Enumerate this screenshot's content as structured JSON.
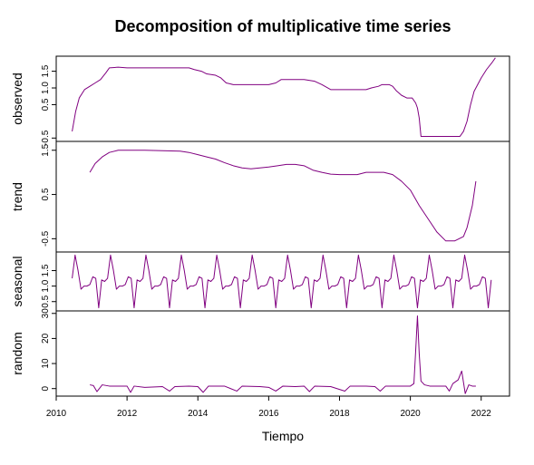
{
  "chart_data": {
    "type": "line",
    "title": "Decomposition of multiplicative time series",
    "xlabel": "Tiempo",
    "line_color": "#800080",
    "xlim": [
      2010,
      2022.8
    ],
    "xticks": [
      2010,
      2012,
      2014,
      2016,
      2018,
      2020,
      2022
    ],
    "panels": [
      {
        "name": "observed",
        "ylabel": "observed",
        "ylim": [
          -0.6,
          1.95
        ],
        "yticks": [
          -0.5,
          0.5,
          1.0,
          1.5
        ],
        "yticklabels": [
          "-0.5",
          "0.5",
          "1.0",
          "1.5"
        ],
        "points": [
          [
            2010.45,
            -0.3
          ],
          [
            2010.55,
            0.3
          ],
          [
            2010.65,
            0.7
          ],
          [
            2010.8,
            0.95
          ],
          [
            2010.95,
            1.05
          ],
          [
            2011.1,
            1.15
          ],
          [
            2011.25,
            1.25
          ],
          [
            2011.4,
            1.45
          ],
          [
            2011.5,
            1.6
          ],
          [
            2011.75,
            1.62
          ],
          [
            2012.0,
            1.6
          ],
          [
            2013.0,
            1.6
          ],
          [
            2013.75,
            1.6
          ],
          [
            2013.9,
            1.55
          ],
          [
            2014.1,
            1.5
          ],
          [
            2014.25,
            1.42
          ],
          [
            2014.5,
            1.38
          ],
          [
            2014.65,
            1.3
          ],
          [
            2014.8,
            1.15
          ],
          [
            2015.0,
            1.1
          ],
          [
            2015.5,
            1.1
          ],
          [
            2016.0,
            1.1
          ],
          [
            2016.2,
            1.15
          ],
          [
            2016.35,
            1.25
          ],
          [
            2016.6,
            1.25
          ],
          [
            2017.0,
            1.25
          ],
          [
            2017.3,
            1.2
          ],
          [
            2017.5,
            1.1
          ],
          [
            2017.75,
            0.95
          ],
          [
            2018.0,
            0.95
          ],
          [
            2018.5,
            0.95
          ],
          [
            2018.75,
            0.95
          ],
          [
            2018.9,
            1.0
          ],
          [
            2019.1,
            1.05
          ],
          [
            2019.2,
            1.1
          ],
          [
            2019.4,
            1.1
          ],
          [
            2019.5,
            1.05
          ],
          [
            2019.6,
            0.92
          ],
          [
            2019.75,
            0.78
          ],
          [
            2019.9,
            0.7
          ],
          [
            2020.05,
            0.7
          ],
          [
            2020.15,
            0.55
          ],
          [
            2020.2,
            0.4
          ],
          [
            2020.25,
            0.1
          ],
          [
            2020.3,
            -0.45
          ],
          [
            2021.0,
            -0.45
          ],
          [
            2021.4,
            -0.45
          ],
          [
            2021.5,
            -0.3
          ],
          [
            2021.6,
            0.0
          ],
          [
            2021.7,
            0.5
          ],
          [
            2021.8,
            0.9
          ],
          [
            2022.0,
            1.3
          ],
          [
            2022.15,
            1.55
          ],
          [
            2022.3,
            1.75
          ],
          [
            2022.4,
            1.9
          ]
        ]
      },
      {
        "name": "trend",
        "ylabel": "trend",
        "ylim": [
          -0.8,
          1.7
        ],
        "yticks": [
          -0.5,
          0.5,
          1.5
        ],
        "yticklabels": [
          "-0.5",
          "0.5",
          "1.5"
        ],
        "points": [
          [
            2010.95,
            1.0
          ],
          [
            2011.1,
            1.2
          ],
          [
            2011.3,
            1.35
          ],
          [
            2011.5,
            1.45
          ],
          [
            2011.75,
            1.5
          ],
          [
            2012.0,
            1.5
          ],
          [
            2012.5,
            1.5
          ],
          [
            2013.0,
            1.49
          ],
          [
            2013.5,
            1.48
          ],
          [
            2013.75,
            1.45
          ],
          [
            2014.0,
            1.4
          ],
          [
            2014.25,
            1.35
          ],
          [
            2014.5,
            1.3
          ],
          [
            2014.75,
            1.22
          ],
          [
            2015.0,
            1.15
          ],
          [
            2015.25,
            1.1
          ],
          [
            2015.5,
            1.08
          ],
          [
            2015.75,
            1.1
          ],
          [
            2016.0,
            1.12
          ],
          [
            2016.25,
            1.15
          ],
          [
            2016.5,
            1.18
          ],
          [
            2016.75,
            1.18
          ],
          [
            2017.0,
            1.15
          ],
          [
            2017.25,
            1.05
          ],
          [
            2017.5,
            1.0
          ],
          [
            2017.75,
            0.96
          ],
          [
            2018.0,
            0.95
          ],
          [
            2018.25,
            0.95
          ],
          [
            2018.5,
            0.95
          ],
          [
            2018.75,
            1.0
          ],
          [
            2019.0,
            1.0
          ],
          [
            2019.25,
            1.0
          ],
          [
            2019.5,
            0.95
          ],
          [
            2019.75,
            0.8
          ],
          [
            2020.0,
            0.6
          ],
          [
            2020.25,
            0.25
          ],
          [
            2020.5,
            -0.05
          ],
          [
            2020.75,
            -0.35
          ],
          [
            2021.0,
            -0.55
          ],
          [
            2021.25,
            -0.55
          ],
          [
            2021.5,
            -0.45
          ],
          [
            2021.6,
            -0.25
          ],
          [
            2021.75,
            0.25
          ],
          [
            2021.85,
            0.8
          ]
        ]
      },
      {
        "name": "seasonal",
        "ylabel": "seasonal",
        "ylim": [
          0.2,
          2.1
        ],
        "yticks": [
          0.5,
          1.0,
          1.5
        ],
        "yticklabels": [
          "0.5",
          "1.0",
          "1.5"
        ],
        "season_start": 2010.45,
        "season_end": 2022.35,
        "season_pattern": [
          1.25,
          2.0,
          1.5,
          0.9,
          1.0,
          1.0,
          1.05,
          1.3,
          1.25,
          0.3,
          1.2,
          1.15
        ]
      },
      {
        "name": "random",
        "ylabel": "random",
        "ylim": [
          -3,
          31
        ],
        "yticks": [
          0,
          10,
          20,
          30
        ],
        "yticklabels": [
          "0",
          "10",
          "20",
          "30"
        ],
        "points": [
          [
            2010.95,
            1.5
          ],
          [
            2011.05,
            1.2
          ],
          [
            2011.15,
            -1.2
          ],
          [
            2011.3,
            1.5
          ],
          [
            2011.5,
            1.0
          ],
          [
            2011.75,
            1.0
          ],
          [
            2012.0,
            1.0
          ],
          [
            2012.1,
            -1.5
          ],
          [
            2012.2,
            1.0
          ],
          [
            2012.5,
            0.5
          ],
          [
            2013.0,
            0.8
          ],
          [
            2013.2,
            -1.0
          ],
          [
            2013.35,
            0.8
          ],
          [
            2013.75,
            1.0
          ],
          [
            2014.0,
            0.8
          ],
          [
            2014.15,
            -1.5
          ],
          [
            2014.3,
            1.0
          ],
          [
            2014.75,
            1.0
          ],
          [
            2015.1,
            -1.0
          ],
          [
            2015.25,
            1.0
          ],
          [
            2015.75,
            0.8
          ],
          [
            2016.0,
            0.5
          ],
          [
            2016.2,
            -1.0
          ],
          [
            2016.4,
            1.0
          ],
          [
            2016.75,
            0.8
          ],
          [
            2017.0,
            1.0
          ],
          [
            2017.15,
            -1.2
          ],
          [
            2017.3,
            1.0
          ],
          [
            2017.75,
            0.8
          ],
          [
            2018.15,
            -1.0
          ],
          [
            2018.3,
            1.0
          ],
          [
            2018.75,
            1.0
          ],
          [
            2019.0,
            0.8
          ],
          [
            2019.15,
            -1.0
          ],
          [
            2019.3,
            1.0
          ],
          [
            2019.75,
            1.0
          ],
          [
            2020.0,
            1.0
          ],
          [
            2020.1,
            2.0
          ],
          [
            2020.15,
            15.0
          ],
          [
            2020.2,
            29.0
          ],
          [
            2020.25,
            14.0
          ],
          [
            2020.3,
            3.0
          ],
          [
            2020.4,
            1.5
          ],
          [
            2020.55,
            1.0
          ],
          [
            2020.75,
            1.0
          ],
          [
            2021.0,
            1.0
          ],
          [
            2021.1,
            -1.0
          ],
          [
            2021.2,
            2.0
          ],
          [
            2021.35,
            3.5
          ],
          [
            2021.45,
            7.0
          ],
          [
            2021.55,
            -2.0
          ],
          [
            2021.65,
            1.5
          ],
          [
            2021.75,
            1.0
          ],
          [
            2021.85,
            1.0
          ]
        ]
      }
    ]
  }
}
